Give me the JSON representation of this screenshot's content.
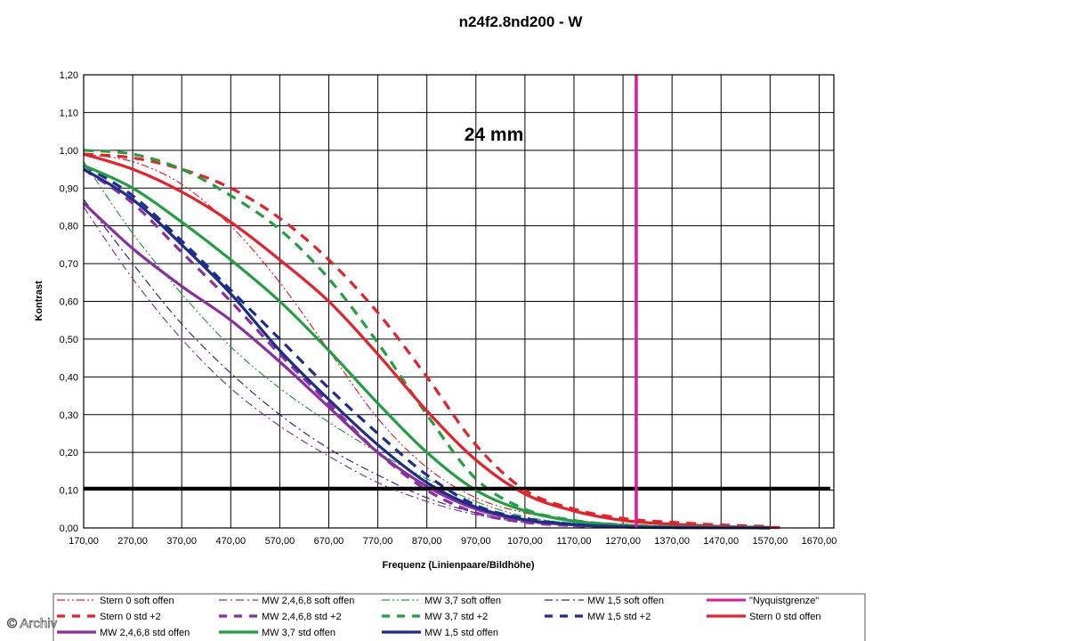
{
  "watermark": "© Archiv",
  "chart_data": {
    "type": "line",
    "title": "n24f2.8nd200 - W",
    "xlabel": "Frequenz (Linienpaare/Bildhöhe)",
    "ylabel": "Kontrast",
    "annotation": "24 mm",
    "xlim": [
      170,
      1700
    ],
    "ylim": [
      0,
      1.2
    ],
    "x_ticks": [
      "170,00",
      "270,00",
      "370,00",
      "470,00",
      "570,00",
      "670,00",
      "770,00",
      "870,00",
      "970,00",
      "1070,00",
      "1170,00",
      "1270,00",
      "1370,00",
      "1470,00",
      "1570,00",
      "1670,00"
    ],
    "y_ticks": [
      "0,00",
      "0,10",
      "0,20",
      "0,30",
      "0,40",
      "0,50",
      "0,60",
      "0,70",
      "0,80",
      "0,90",
      "1,00",
      "1,10",
      "1,20"
    ],
    "grid": true,
    "legend_position": "bottom",
    "reference_lines": [
      {
        "orientation": "horizontal",
        "y": 0.105,
        "color": "#000000"
      },
      {
        "orientation": "vertical",
        "x": 1297,
        "color": "#e0189a"
      }
    ],
    "series": [
      {
        "name": "Stern 0 soft offen",
        "color": "#e8202a",
        "dash": "dashdotdot",
        "width": 1.2,
        "points": [
          [
            170,
            0.99
          ],
          [
            270,
            0.97
          ],
          [
            370,
            0.91
          ],
          [
            470,
            0.8
          ],
          [
            570,
            0.65
          ],
          [
            670,
            0.47
          ],
          [
            770,
            0.29
          ],
          [
            870,
            0.16
          ],
          [
            970,
            0.08
          ],
          [
            1070,
            0.04
          ],
          [
            1170,
            0.02
          ],
          [
            1270,
            0.01
          ],
          [
            1370,
            0.005
          ],
          [
            1470,
            0.003
          ],
          [
            1590,
            0.001
          ]
        ]
      },
      {
        "name": "MW 2,4,6,8 soft offen",
        "color": "#8b2fa0",
        "dash": "dashdot",
        "width": 1.2,
        "points": [
          [
            170,
            0.85
          ],
          [
            270,
            0.66
          ],
          [
            370,
            0.5
          ],
          [
            470,
            0.37
          ],
          [
            570,
            0.27
          ],
          [
            670,
            0.19
          ],
          [
            770,
            0.12
          ],
          [
            870,
            0.07
          ],
          [
            970,
            0.035
          ],
          [
            1070,
            0.015
          ],
          [
            1170,
            0.007
          ],
          [
            1270,
            0.003
          ],
          [
            1370,
            0.001
          ],
          [
            1570,
            0
          ]
        ]
      },
      {
        "name": "MW 3,7 soft offen",
        "color": "#20a040",
        "dash": "dashdotdot",
        "width": 1.2,
        "points": [
          [
            170,
            0.97
          ],
          [
            270,
            0.78
          ],
          [
            370,
            0.62
          ],
          [
            470,
            0.48
          ],
          [
            570,
            0.37
          ],
          [
            670,
            0.28
          ],
          [
            770,
            0.2
          ],
          [
            870,
            0.13
          ],
          [
            970,
            0.07
          ],
          [
            1070,
            0.03
          ],
          [
            1170,
            0.012
          ],
          [
            1270,
            0.005
          ],
          [
            1370,
            0.002
          ],
          [
            1570,
            0
          ]
        ]
      },
      {
        "name": "MW 1,5 soft offen",
        "color": "#1e2d8a",
        "dash": "dashdot",
        "width": 1.2,
        "points": [
          [
            170,
            0.87
          ],
          [
            270,
            0.7
          ],
          [
            370,
            0.54
          ],
          [
            470,
            0.41
          ],
          [
            570,
            0.3
          ],
          [
            670,
            0.21
          ],
          [
            770,
            0.14
          ],
          [
            870,
            0.08
          ],
          [
            970,
            0.04
          ],
          [
            1070,
            0.018
          ],
          [
            1170,
            0.008
          ],
          [
            1270,
            0.003
          ],
          [
            1370,
            0.001
          ],
          [
            1570,
            0
          ]
        ]
      },
      {
        "name": "\"Nyquistgrenze\"",
        "color": "#e0189a",
        "dash": "solid",
        "width": 3,
        "points": [
          [
            1297,
            0
          ],
          [
            1297,
            1.2
          ]
        ]
      },
      {
        "name": "Stern 0 std +2",
        "color": "#e8202a",
        "dash": "dash",
        "width": 3.2,
        "points": [
          [
            170,
            0.99
          ],
          [
            270,
            0.98
          ],
          [
            370,
            0.95
          ],
          [
            470,
            0.9
          ],
          [
            570,
            0.82
          ],
          [
            670,
            0.71
          ],
          [
            770,
            0.57
          ],
          [
            870,
            0.4
          ],
          [
            970,
            0.22
          ],
          [
            1070,
            0.1
          ],
          [
            1170,
            0.05
          ],
          [
            1270,
            0.025
          ],
          [
            1370,
            0.015
          ],
          [
            1470,
            0.008
          ],
          [
            1570,
            0.004
          ]
        ]
      },
      {
        "name": "MW 2,4,6,8 std +2",
        "color": "#8b2fa0",
        "dash": "dash",
        "width": 3.2,
        "points": [
          [
            170,
            0.95
          ],
          [
            270,
            0.86
          ],
          [
            370,
            0.73
          ],
          [
            470,
            0.6
          ],
          [
            570,
            0.46
          ],
          [
            670,
            0.33
          ],
          [
            770,
            0.2
          ],
          [
            870,
            0.1
          ],
          [
            970,
            0.04
          ],
          [
            1070,
            0.015
          ],
          [
            1170,
            0.006
          ],
          [
            1270,
            0.002
          ],
          [
            1370,
            0.001
          ],
          [
            1570,
            0
          ]
        ]
      },
      {
        "name": "MW 3,7 std +2",
        "color": "#20a040",
        "dash": "dash",
        "width": 3.2,
        "points": [
          [
            170,
            1.0
          ],
          [
            270,
            0.99
          ],
          [
            370,
            0.95
          ],
          [
            470,
            0.88
          ],
          [
            570,
            0.79
          ],
          [
            670,
            0.66
          ],
          [
            770,
            0.49
          ],
          [
            870,
            0.3
          ],
          [
            970,
            0.13
          ],
          [
            1070,
            0.05
          ],
          [
            1170,
            0.02
          ],
          [
            1270,
            0.008
          ],
          [
            1370,
            0.003
          ],
          [
            1570,
            0.001
          ]
        ]
      },
      {
        "name": "MW 1,5 std +2",
        "color": "#1e2d8a",
        "dash": "dash",
        "width": 3.2,
        "points": [
          [
            170,
            0.96
          ],
          [
            270,
            0.88
          ],
          [
            370,
            0.76
          ],
          [
            470,
            0.63
          ],
          [
            570,
            0.5
          ],
          [
            670,
            0.37
          ],
          [
            770,
            0.25
          ],
          [
            870,
            0.14
          ],
          [
            970,
            0.06
          ],
          [
            1070,
            0.025
          ],
          [
            1170,
            0.01
          ],
          [
            1270,
            0.004
          ],
          [
            1370,
            0.002
          ],
          [
            1570,
            0.001
          ]
        ]
      },
      {
        "name": "Stern 0 std offen",
        "color": "#e8202a",
        "dash": "solid",
        "width": 3.2,
        "points": [
          [
            170,
            0.99
          ],
          [
            270,
            0.95
          ],
          [
            370,
            0.89
          ],
          [
            470,
            0.81
          ],
          [
            570,
            0.71
          ],
          [
            670,
            0.6
          ],
          [
            770,
            0.46
          ],
          [
            870,
            0.31
          ],
          [
            970,
            0.18
          ],
          [
            1070,
            0.09
          ],
          [
            1170,
            0.045
          ],
          [
            1270,
            0.02
          ],
          [
            1370,
            0.01
          ],
          [
            1470,
            0.004
          ],
          [
            1590,
            0.001
          ]
        ]
      },
      {
        "name": "MW 2,4,6,8 std offen",
        "color": "#8b2fa0",
        "dash": "solid",
        "width": 3.2,
        "points": [
          [
            170,
            0.86
          ],
          [
            270,
            0.74
          ],
          [
            370,
            0.64
          ],
          [
            470,
            0.55
          ],
          [
            570,
            0.44
          ],
          [
            670,
            0.32
          ],
          [
            770,
            0.2
          ],
          [
            870,
            0.11
          ],
          [
            970,
            0.05
          ],
          [
            1070,
            0.02
          ],
          [
            1170,
            0.008
          ],
          [
            1270,
            0.003
          ],
          [
            1370,
            0.001
          ],
          [
            1570,
            0
          ]
        ]
      },
      {
        "name": "MW 3,7 std offen",
        "color": "#20a040",
        "dash": "solid",
        "width": 3.2,
        "points": [
          [
            170,
            0.96
          ],
          [
            270,
            0.9
          ],
          [
            370,
            0.81
          ],
          [
            470,
            0.71
          ],
          [
            570,
            0.6
          ],
          [
            670,
            0.47
          ],
          [
            770,
            0.33
          ],
          [
            870,
            0.2
          ],
          [
            970,
            0.1
          ],
          [
            1070,
            0.045
          ],
          [
            1170,
            0.018
          ],
          [
            1270,
            0.007
          ],
          [
            1370,
            0.003
          ],
          [
            1570,
            0.001
          ]
        ]
      },
      {
        "name": "MW 1,5 std offen",
        "color": "#1e2d8a",
        "dash": "solid",
        "width": 3.2,
        "points": [
          [
            170,
            0.95
          ],
          [
            270,
            0.87
          ],
          [
            370,
            0.75
          ],
          [
            470,
            0.62
          ],
          [
            570,
            0.47
          ],
          [
            670,
            0.34
          ],
          [
            770,
            0.22
          ],
          [
            870,
            0.12
          ],
          [
            970,
            0.055
          ],
          [
            1070,
            0.022
          ],
          [
            1170,
            0.009
          ],
          [
            1270,
            0.003
          ],
          [
            1370,
            0.001
          ],
          [
            1570,
            0
          ]
        ]
      }
    ]
  }
}
